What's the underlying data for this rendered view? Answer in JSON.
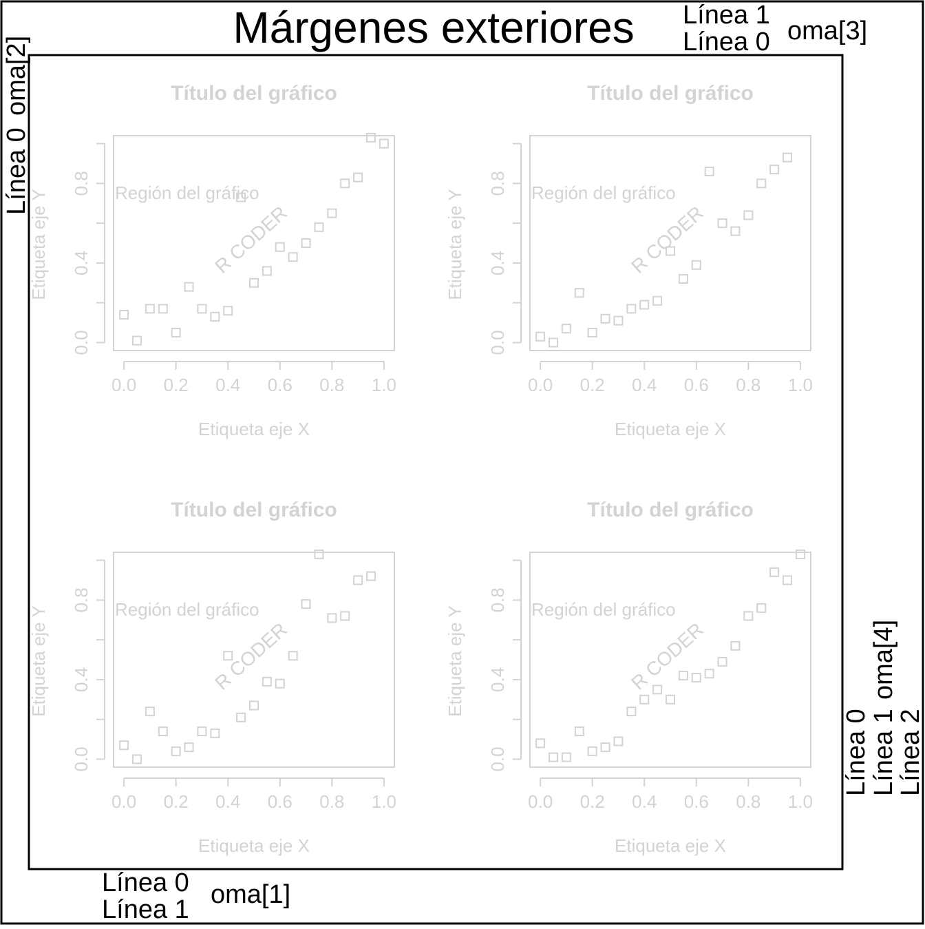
{
  "figure": {
    "title": "Márgenes exteriores",
    "colors": {
      "foreground": "#000000",
      "panel": "#d3d3d3",
      "background": "#ffffff"
    },
    "oma_labels": {
      "top": {
        "lines": [
          "Línea 1",
          "Línea 0"
        ],
        "name": "oma[3]"
      },
      "left": {
        "lines": [
          "Línea 0"
        ],
        "name": "oma[2]"
      },
      "bottom": {
        "lines": [
          "Línea 0",
          "Línea 1"
        ],
        "name": "oma[1]"
      },
      "right": {
        "lines": [
          "Línea 0",
          "Línea 1",
          "Línea 2"
        ],
        "name": "oma[4]"
      }
    }
  },
  "chart_data": [
    {
      "type": "scatter",
      "title": "Título del gráfico",
      "xlabel": "Etiqueta eje X",
      "ylabel": "Etiqueta eje Y",
      "region_label": "Región del gráfico",
      "watermark": "R CODER",
      "xlim": [
        -0.04,
        1.04
      ],
      "ylim": [
        -0.04,
        1.04
      ],
      "xticks": [
        "0.0",
        "0.2",
        "0.4",
        "0.6",
        "0.8",
        "1.0"
      ],
      "yticks": [
        "0.0",
        "0.4",
        "0.8"
      ],
      "marker": "open-square",
      "x": [
        0.0,
        0.05,
        0.1,
        0.15,
        0.2,
        0.25,
        0.3,
        0.35,
        0.4,
        0.45,
        0.5,
        0.55,
        0.6,
        0.65,
        0.7,
        0.75,
        0.8,
        0.85,
        0.9,
        0.95,
        1.0
      ],
      "y": [
        0.14,
        0.01,
        0.17,
        0.17,
        0.05,
        0.28,
        0.17,
        0.13,
        0.16,
        0.73,
        0.3,
        0.36,
        0.48,
        0.43,
        0.5,
        0.58,
        0.65,
        0.8,
        0.83,
        1.03,
        1.0
      ]
    },
    {
      "type": "scatter",
      "title": "Título del gráfico",
      "xlabel": "Etiqueta eje X",
      "ylabel": "Etiqueta eje Y",
      "region_label": "Región del gráfico",
      "watermark": "R CODER",
      "xlim": [
        -0.04,
        1.04
      ],
      "ylim": [
        -0.04,
        1.04
      ],
      "xticks": [
        "0.0",
        "0.2",
        "0.4",
        "0.6",
        "0.8",
        "1.0"
      ],
      "yticks": [
        "0.0",
        "0.4",
        "0.8"
      ],
      "marker": "open-square",
      "x": [
        0.0,
        0.05,
        0.1,
        0.15,
        0.2,
        0.25,
        0.3,
        0.35,
        0.4,
        0.45,
        0.5,
        0.55,
        0.6,
        0.65,
        0.7,
        0.75,
        0.8,
        0.85,
        0.9,
        0.95
      ],
      "y": [
        0.03,
        0.0,
        0.07,
        0.25,
        0.05,
        0.12,
        0.11,
        0.17,
        0.19,
        0.21,
        0.46,
        0.32,
        0.39,
        0.86,
        0.6,
        0.56,
        0.64,
        0.8,
        0.87,
        0.93
      ]
    },
    {
      "type": "scatter",
      "title": "Título del gráfico",
      "xlabel": "Etiqueta eje X",
      "ylabel": "Etiqueta eje Y",
      "region_label": "Región del gráfico",
      "watermark": "R CODER",
      "xlim": [
        -0.04,
        1.04
      ],
      "ylim": [
        -0.04,
        1.04
      ],
      "xticks": [
        "0.0",
        "0.2",
        "0.4",
        "0.6",
        "0.8",
        "1.0"
      ],
      "yticks": [
        "0.0",
        "0.4",
        "0.8"
      ],
      "marker": "open-square",
      "x": [
        0.0,
        0.05,
        0.1,
        0.15,
        0.2,
        0.25,
        0.3,
        0.35,
        0.4,
        0.45,
        0.5,
        0.55,
        0.6,
        0.65,
        0.7,
        0.75,
        0.8,
        0.85,
        0.9,
        0.95
      ],
      "y": [
        0.07,
        0.0,
        0.24,
        0.14,
        0.04,
        0.06,
        0.14,
        0.13,
        0.52,
        0.21,
        0.27,
        0.39,
        0.38,
        0.52,
        0.78,
        1.03,
        0.71,
        0.72,
        0.9,
        0.92
      ]
    },
    {
      "type": "scatter",
      "title": "Título del gráfico",
      "xlabel": "Etiqueta eje X",
      "ylabel": "Etiqueta eje Y",
      "region_label": "Región del gráfico",
      "watermark": "R CODER",
      "xlim": [
        -0.04,
        1.04
      ],
      "ylim": [
        -0.04,
        1.04
      ],
      "xticks": [
        "0.0",
        "0.2",
        "0.4",
        "0.6",
        "0.8",
        "1.0"
      ],
      "yticks": [
        "0.0",
        "0.4",
        "0.8"
      ],
      "marker": "open-square",
      "x": [
        0.0,
        0.05,
        0.1,
        0.15,
        0.2,
        0.25,
        0.3,
        0.35,
        0.4,
        0.45,
        0.5,
        0.55,
        0.6,
        0.65,
        0.7,
        0.75,
        0.8,
        0.85,
        0.9,
        0.95,
        1.0
      ],
      "y": [
        0.08,
        0.01,
        0.01,
        0.14,
        0.04,
        0.06,
        0.09,
        0.24,
        0.3,
        0.35,
        0.3,
        0.42,
        0.41,
        0.43,
        0.49,
        0.57,
        0.72,
        0.76,
        0.94,
        0.9,
        1.03
      ]
    }
  ]
}
